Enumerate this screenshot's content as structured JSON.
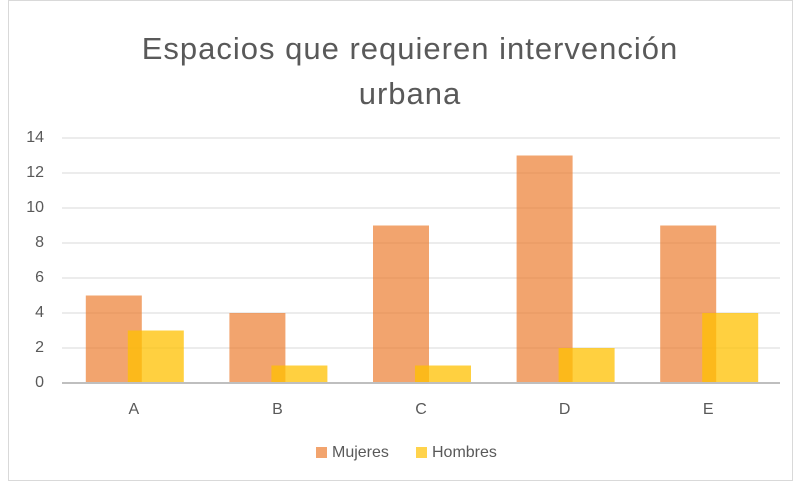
{
  "chart_data": {
    "type": "bar",
    "title": "Espacios que requieren intervención urbana",
    "categories": [
      "A",
      "B",
      "C",
      "D",
      "E"
    ],
    "series": [
      {
        "name": "Mujeres",
        "color": "#ed7d31",
        "values": [
          5,
          4,
          9,
          13,
          9
        ]
      },
      {
        "name": "Hombres",
        "color": "#ffc000",
        "values": [
          3,
          1,
          1,
          2,
          4
        ]
      }
    ],
    "ylim": [
      0,
      14
    ],
    "yticks": [
      0,
      2,
      4,
      6,
      8,
      10,
      12,
      14
    ],
    "grid": true,
    "legend": "bottom"
  }
}
